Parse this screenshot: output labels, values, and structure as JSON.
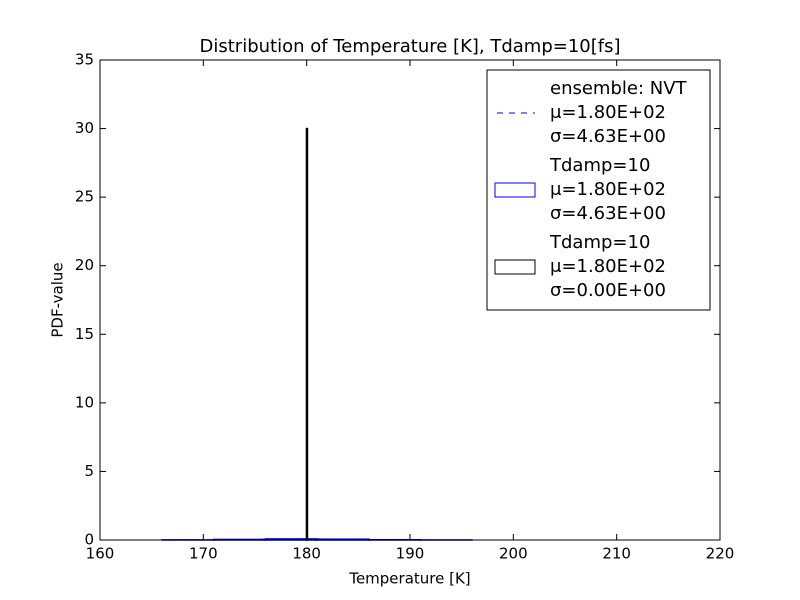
{
  "chart_data": {
    "type": "histogram",
    "title": "Distribution of Temperature [K], Tdamp=10[fs]",
    "x_label": "Temperature [K]",
    "y_label": "PDF-value",
    "xlim": [
      160,
      220
    ],
    "xticks": [
      160,
      170,
      180,
      190,
      200,
      210,
      220
    ],
    "ylim": [
      0,
      35
    ],
    "yticks": [
      0,
      5,
      10,
      15,
      20,
      25,
      30,
      35
    ],
    "legend": "upper right",
    "series": [
      {
        "name": "ensemble: NVT\nμ=1.80E+02\nσ=4.63E+00",
        "color": "#0000ff",
        "type": "line",
        "style": "dashed",
        "x": [
          166,
          170,
          175,
          180,
          185,
          190,
          195,
          200,
          205,
          210
        ],
        "values": [
          0.0009,
          0.0083,
          0.048,
          0.086,
          0.048,
          0.0083,
          0.0005,
          0,
          0,
          0
        ]
      },
      {
        "name": "Tdamp=10\nμ=1.80E+02\nσ=4.63E+00",
        "color": "#0000ff",
        "type": "histogram",
        "bins": [
          166,
          171,
          176,
          181,
          186,
          191,
          196
        ],
        "values": [
          0.01,
          0.04,
          0.08,
          0.06,
          0.02,
          0.005
        ]
      },
      {
        "name": "Tdamp=10\nμ=1.80E+02\nσ=0.00E+00",
        "color": "#000000",
        "type": "histogram",
        "bins": [
          179.98,
          180.01
        ],
        "values": [
          30
        ]
      }
    ]
  }
}
